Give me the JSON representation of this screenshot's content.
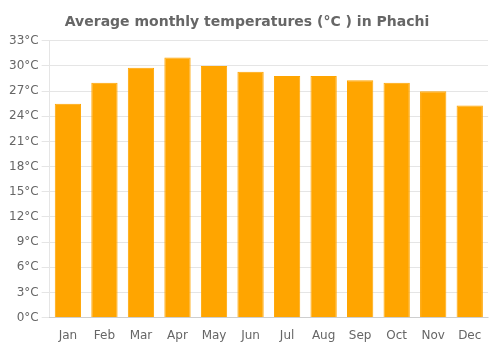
{
  "chart_data": {
    "type": "bar",
    "title": "Average monthly temperatures (°C ) in Phachi",
    "categories": [
      "Jan",
      "Feb",
      "Mar",
      "Apr",
      "May",
      "Jun",
      "Jul",
      "Aug",
      "Sep",
      "Oct",
      "Nov",
      "Dec"
    ],
    "values": [
      25.5,
      28.0,
      29.8,
      31.0,
      30.0,
      29.3,
      28.8,
      28.8,
      28.3,
      28.0,
      27.0,
      25.3
    ],
    "color": "#FFA500",
    "ylim": [
      0,
      33
    ],
    "yticks": [
      {
        "value": 0,
        "label": "0°C"
      },
      {
        "value": 3,
        "label": "3°C"
      },
      {
        "value": 6,
        "label": "6°C"
      },
      {
        "value": 9,
        "label": "9°C"
      },
      {
        "value": 12,
        "label": "12°C"
      },
      {
        "value": 15,
        "label": "15°C"
      },
      {
        "value": 18,
        "label": "18°C"
      },
      {
        "value": 21,
        "label": "21°C"
      },
      {
        "value": 24,
        "label": "24°C"
      },
      {
        "value": 27,
        "label": "27°C"
      },
      {
        "value": 30,
        "label": "30°C"
      },
      {
        "value": 33,
        "label": "33°C"
      }
    ],
    "grid": true
  }
}
